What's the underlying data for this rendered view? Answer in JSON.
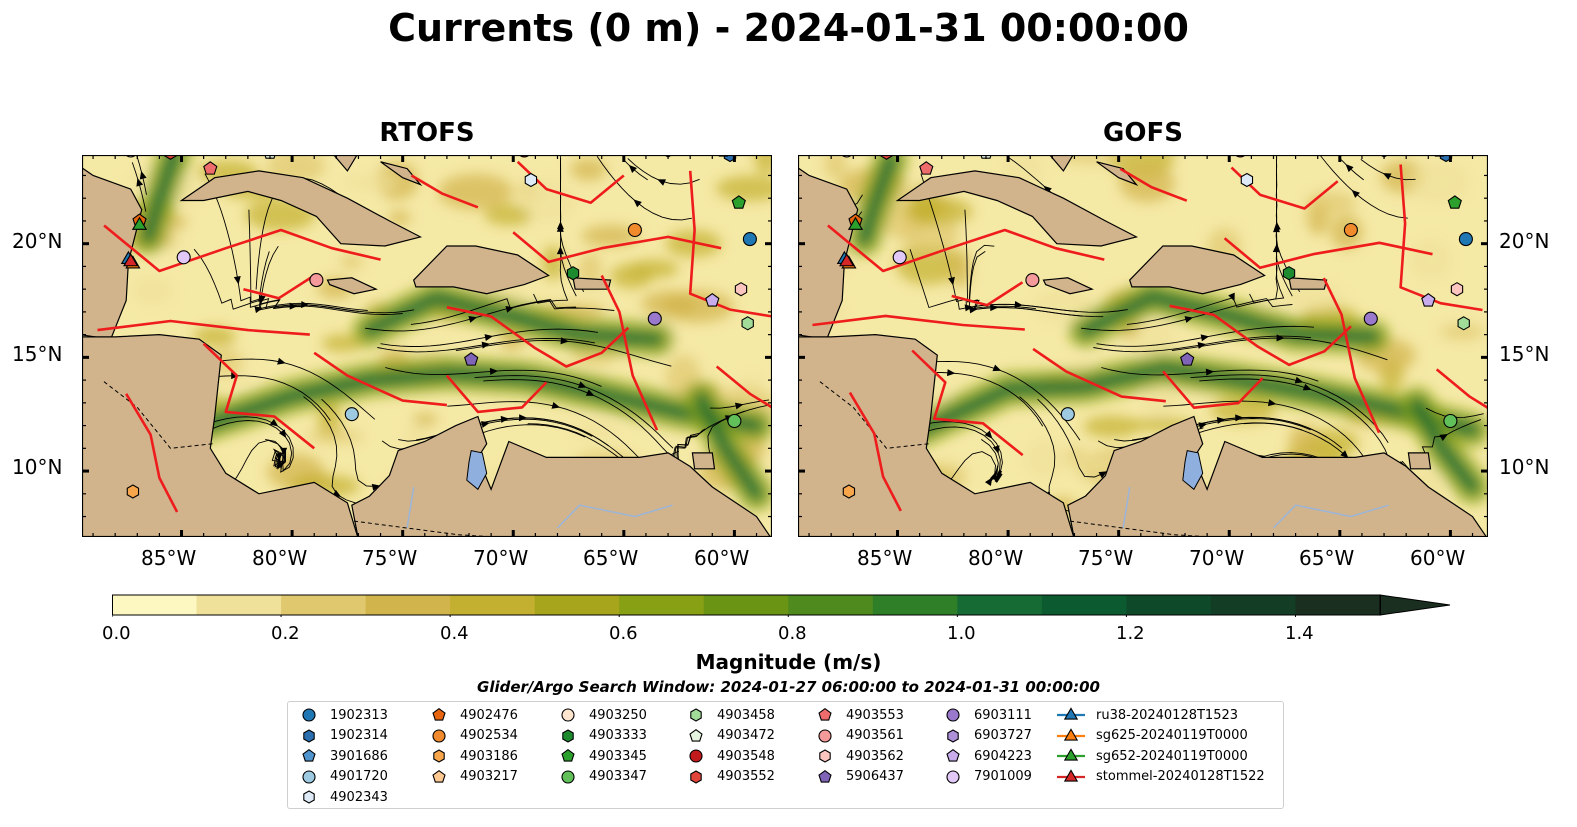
{
  "title": "Currents (0 m) - 2024-01-31 00:00:00",
  "panels": [
    {
      "title": "RTOFS"
    },
    {
      "title": "GOFS"
    }
  ],
  "axes": {
    "lon_ticks": [
      "85°W",
      "80°W",
      "75°W",
      "70°W",
      "65°W",
      "60°W"
    ],
    "lat_ticks": [
      "20°N",
      "15°N",
      "10°N"
    ],
    "lon_values": [
      -85,
      -80,
      -75,
      -70,
      -65,
      -60
    ],
    "lat_values": [
      20,
      15,
      10
    ],
    "lon_range": [
      -89.5,
      -58.3
    ],
    "lat_range": [
      7.1,
      23.9
    ]
  },
  "colors": {
    "land": "#d2b48c",
    "water": "#8fb0de",
    "front": "#ee1c1c",
    "ocean_low": "#f5e9a6"
  },
  "chart_data": {
    "type": "heatmap",
    "title": "Currents (0 m) - 2024-01-31 00:00:00",
    "variable": "Magnitude (m/s)",
    "colorbar": {
      "label": "Magnitude (m/s)",
      "ticks": [
        "0.0",
        "0.2",
        "0.4",
        "0.6",
        "0.8",
        "1.0",
        "1.2",
        "1.4"
      ],
      "tick_values": [
        0.0,
        0.2,
        0.4,
        0.6,
        0.8,
        1.0,
        1.2,
        1.4
      ],
      "range": [
        0.0,
        1.5
      ],
      "extend": "max",
      "colors": [
        "#fdf7c1",
        "#efe19a",
        "#e0c86e",
        "#d1b44c",
        "#c3b030",
        "#a7a51c",
        "#87a014",
        "#6a9414",
        "#4e8a1e",
        "#2f7e28",
        "#166a34",
        "#0b5a30",
        "#0e4a2a",
        "#143d26",
        "#1a2f1f"
      ]
    },
    "search_window": "Glider/Argo Search Window: 2024-01-27 06:00:00 to 2024-01-31 00:00:00",
    "legend": [
      {
        "name": "1902313",
        "marker": "circle",
        "color": "#1f77b4"
      },
      {
        "name": "1902314",
        "marker": "hexagon",
        "color": "#2b6fb0"
      },
      {
        "name": "3901686",
        "marker": "pentagon",
        "color": "#4f94cd"
      },
      {
        "name": "4901720",
        "marker": "circle",
        "color": "#9ecae1"
      },
      {
        "name": "4902343",
        "marker": "hexagon",
        "color": "#deebf7"
      },
      {
        "name": "4902476",
        "marker": "pentagon",
        "color": "#e6650e"
      },
      {
        "name": "4902534",
        "marker": "circle",
        "color": "#f08a2c"
      },
      {
        "name": "4903186",
        "marker": "hexagon",
        "color": "#f8a64c"
      },
      {
        "name": "4903217",
        "marker": "pentagon",
        "color": "#fdc991"
      },
      {
        "name": "4903250",
        "marker": "circle",
        "color": "#fee6ce"
      },
      {
        "name": "4903333",
        "marker": "hexagon",
        "color": "#1d8a30"
      },
      {
        "name": "4903345",
        "marker": "pentagon",
        "color": "#2ca02c"
      },
      {
        "name": "4903347",
        "marker": "circle",
        "color": "#62c05b"
      },
      {
        "name": "4903458",
        "marker": "hexagon",
        "color": "#a1dc98"
      },
      {
        "name": "4903472",
        "marker": "pentagon",
        "color": "#e5f5e0"
      },
      {
        "name": "4903548",
        "marker": "circle",
        "color": "#c21a1a"
      },
      {
        "name": "4903552",
        "marker": "hexagon",
        "color": "#e0443a"
      },
      {
        "name": "4903553",
        "marker": "pentagon",
        "color": "#ef6c6c"
      },
      {
        "name": "4903561",
        "marker": "circle",
        "color": "#f49a9a"
      },
      {
        "name": "4903562",
        "marker": "hexagon",
        "color": "#fcc5c0"
      },
      {
        "name": "5906437",
        "marker": "pentagon",
        "color": "#8064b8"
      },
      {
        "name": "6903111",
        "marker": "circle",
        "color": "#9a78cc"
      },
      {
        "name": "6903727",
        "marker": "hexagon",
        "color": "#ae90d8"
      },
      {
        "name": "6904223",
        "marker": "pentagon",
        "color": "#c8acec"
      },
      {
        "name": "7901009",
        "marker": "circle",
        "color": "#e2c8f6"
      },
      {
        "name": "ru38-20240128T1523",
        "marker": "triangle-line",
        "color": "#1f77b4"
      },
      {
        "name": "sg625-20240119T0000",
        "marker": "triangle-line",
        "color": "#ff7f0e"
      },
      {
        "name": "sg652-20240119T0000",
        "marker": "triangle-line",
        "color": "#2ca02c"
      },
      {
        "name": "stommel-20240128T1522",
        "marker": "triangle-line",
        "color": "#d62728"
      }
    ],
    "floats": [
      {
        "id": "1902313",
        "lon": -59.3,
        "lat": 20.2
      },
      {
        "id": "1902314",
        "lon": -60.2,
        "lat": 23.9
      },
      {
        "id": "3901686",
        "lon": -60.5,
        "lat": 24.1
      },
      {
        "id": "4901720",
        "lon": -77.3,
        "lat": 12.5
      },
      {
        "id": "4902343",
        "lon": -69.2,
        "lat": 22.8
      },
      {
        "id": "4902476",
        "lon": -86.9,
        "lat": 21.0
      },
      {
        "id": "4902534",
        "lon": -64.5,
        "lat": 20.6
      },
      {
        "id": "4903186",
        "lon": -87.2,
        "lat": 9.1
      },
      {
        "id": "4903250",
        "lon": -87.3,
        "lat": 24.1
      },
      {
        "id": "4903333",
        "lon": -67.3,
        "lat": 18.7
      },
      {
        "id": "4903345",
        "lon": -59.8,
        "lat": 21.8
      },
      {
        "id": "4903347",
        "lon": -60.0,
        "lat": 12.2
      },
      {
        "id": "4903458",
        "lon": -59.4,
        "lat": 16.5
      },
      {
        "id": "4903472",
        "lon": -81.0,
        "lat": 24.0
      },
      {
        "id": "4903548",
        "lon": -69.5,
        "lat": 24.1
      },
      {
        "id": "4903552",
        "lon": -85.5,
        "lat": 24.0
      },
      {
        "id": "4903553",
        "lon": -83.7,
        "lat": 23.3
      },
      {
        "id": "4903561",
        "lon": -78.9,
        "lat": 18.4
      },
      {
        "id": "4903562",
        "lon": -59.7,
        "lat": 18.0
      },
      {
        "id": "5906437",
        "lon": -71.9,
        "lat": 14.9
      },
      {
        "id": "6903111",
        "lon": -63.6,
        "lat": 16.7
      },
      {
        "id": "6903727",
        "lon": -63.0,
        "lat": 24.1
      },
      {
        "id": "6904223",
        "lon": -61.0,
        "lat": 17.5
      },
      {
        "id": "7901009",
        "lon": -84.9,
        "lat": 19.4
      }
    ],
    "gliders": [
      {
        "id": "ru38-20240128T1523",
        "lon": -87.4,
        "lat": 19.3
      },
      {
        "id": "sg625-20240119T0000",
        "lon": -87.2,
        "lat": 19.1
      },
      {
        "id": "sg652-20240119T0000",
        "lon": -86.9,
        "lat": 20.8
      },
      {
        "id": "stommel-20240128T1522",
        "lon": -87.3,
        "lat": 19.2
      }
    ]
  }
}
